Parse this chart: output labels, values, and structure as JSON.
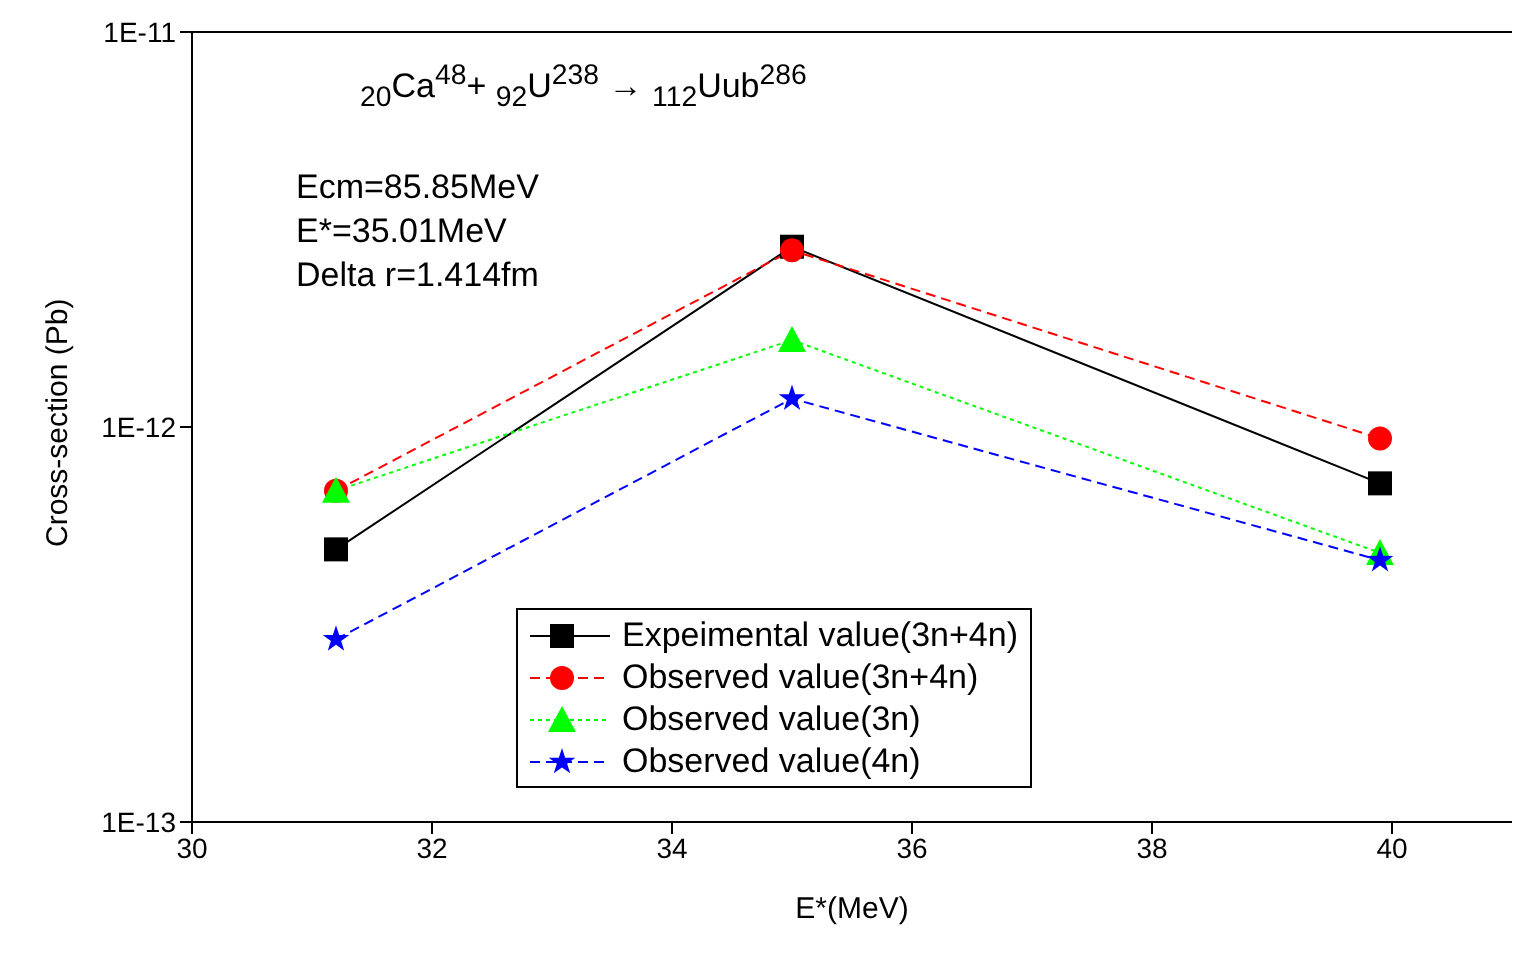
{
  "chart_data": {
    "type": "line",
    "xlabel": "E*(MeV)",
    "ylabel": "Cross-section (Pb)",
    "annotations": [
      "$_{20}$Ca$^{48}$+ $_{92}$U$^{238}$ → $_{112}$Uub$^{286}$",
      "Ecm=85.85MeV",
      "E*=35.01MeV",
      "Delta r=1.414fm"
    ],
    "x": [
      31.2,
      35.0,
      39.9
    ],
    "series": [
      {
        "name": "Expeimental value(3n+4n)",
        "color": "#000000",
        "values": [
          4.9e-13,
          2.86e-12,
          7.2e-13
        ],
        "marker": "square",
        "line_style": "solid"
      },
      {
        "name": "Observed value(3n+4n)",
        "color": "#ff0000",
        "values": [
          6.9e-13,
          2.8e-12,
          9.35e-13
        ],
        "marker": "circle",
        "line_style": "dashed"
      },
      {
        "name": "Observed value(3n)",
        "color": "#00ff00",
        "values": [
          6.9e-13,
          1.66e-12,
          4.8e-13
        ],
        "marker": "triangle",
        "line_style": "dotted"
      },
      {
        "name": "Observed value(4n)",
        "color": "#0000ff",
        "values": [
          2.9e-13,
          1.18e-12,
          4.6e-13
        ],
        "marker": "star",
        "line_style": "dashed"
      }
    ],
    "xlim": [
      30,
      41
    ],
    "xticks": [
      30,
      32,
      34,
      36,
      38,
      40
    ],
    "ylim": [
      1e-13,
      1e-11
    ],
    "yticks": [
      {
        "value": 1e-13,
        "label": "1E-13"
      },
      {
        "value": 1e-12,
        "label": "1E-12"
      },
      {
        "value": 1e-11,
        "label": "1E-11"
      }
    ],
    "log": "y",
    "grid": false,
    "legend": "bottom"
  }
}
